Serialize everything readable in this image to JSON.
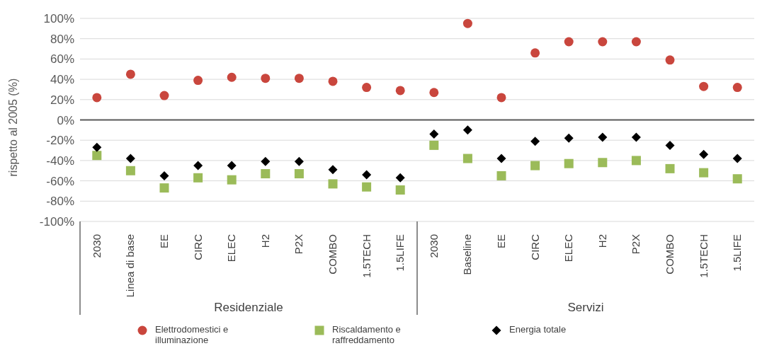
{
  "chart_data": {
    "type": "scatter",
    "ylabel": "rispetto al 2005 (%)",
    "categories": [
      "2030",
      "Linea di base",
      "EE",
      "CIRC",
      "ELEC",
      "H2",
      "P2X",
      "COMBO",
      "1.5TECH",
      "1.5LIFE",
      "2030",
      "Baseline",
      "EE",
      "CIRC",
      "ELEC",
      "H2",
      "P2X",
      "COMBO",
      "1.5TECH",
      "1.5LIFE"
    ],
    "series": [
      {
        "name": "Elettrodomestici e illuminazione",
        "color": "#c9463d",
        "marker": "circle",
        "values": [
          22,
          45,
          24,
          39,
          42,
          41,
          41,
          38,
          32,
          29,
          27,
          95,
          22,
          66,
          77,
          77,
          77,
          59,
          33,
          32
        ]
      },
      {
        "name": "Riscaldamento e raffreddamento",
        "color": "#9bbb59",
        "marker": "square",
        "values": [
          -35,
          -50,
          -67,
          -57,
          -59,
          -53,
          -53,
          -63,
          -66,
          -69,
          -25,
          -38,
          -55,
          -45,
          -43,
          -42,
          -40,
          -48,
          -52,
          -58
        ]
      },
      {
        "name": "Energia totale",
        "color": "#000000",
        "marker": "diamond",
        "values": [
          -27,
          -38,
          -55,
          -45,
          -45,
          -41,
          -41,
          -49,
          -54,
          -57,
          -14,
          -10,
          -38,
          -21,
          -18,
          -17,
          -17,
          -25,
          -34,
          -38
        ]
      }
    ],
    "ylim": [
      -100,
      100
    ],
    "yticks": [
      {
        "value": 100,
        "label": "100%"
      },
      {
        "value": 80,
        "label": "80%"
      },
      {
        "value": 60,
        "label": "60%"
      },
      {
        "value": 40,
        "label": "40%"
      },
      {
        "value": 20,
        "label": "20%"
      },
      {
        "value": 0,
        "label": "0%"
      },
      {
        "value": -20,
        "label": "-20%"
      },
      {
        "value": -40,
        "label": "-40%"
      },
      {
        "value": -60,
        "label": "-60%"
      },
      {
        "value": -80,
        "label": "-80%"
      },
      {
        "value": -100,
        "label": "-100%"
      }
    ],
    "grid": "y",
    "ref_lines": [
      {
        "axis": "y",
        "value": 0,
        "color": "#595959"
      }
    ],
    "legend": "bottom",
    "annotations": [
      "Residenziale",
      "Servizi"
    ]
  }
}
